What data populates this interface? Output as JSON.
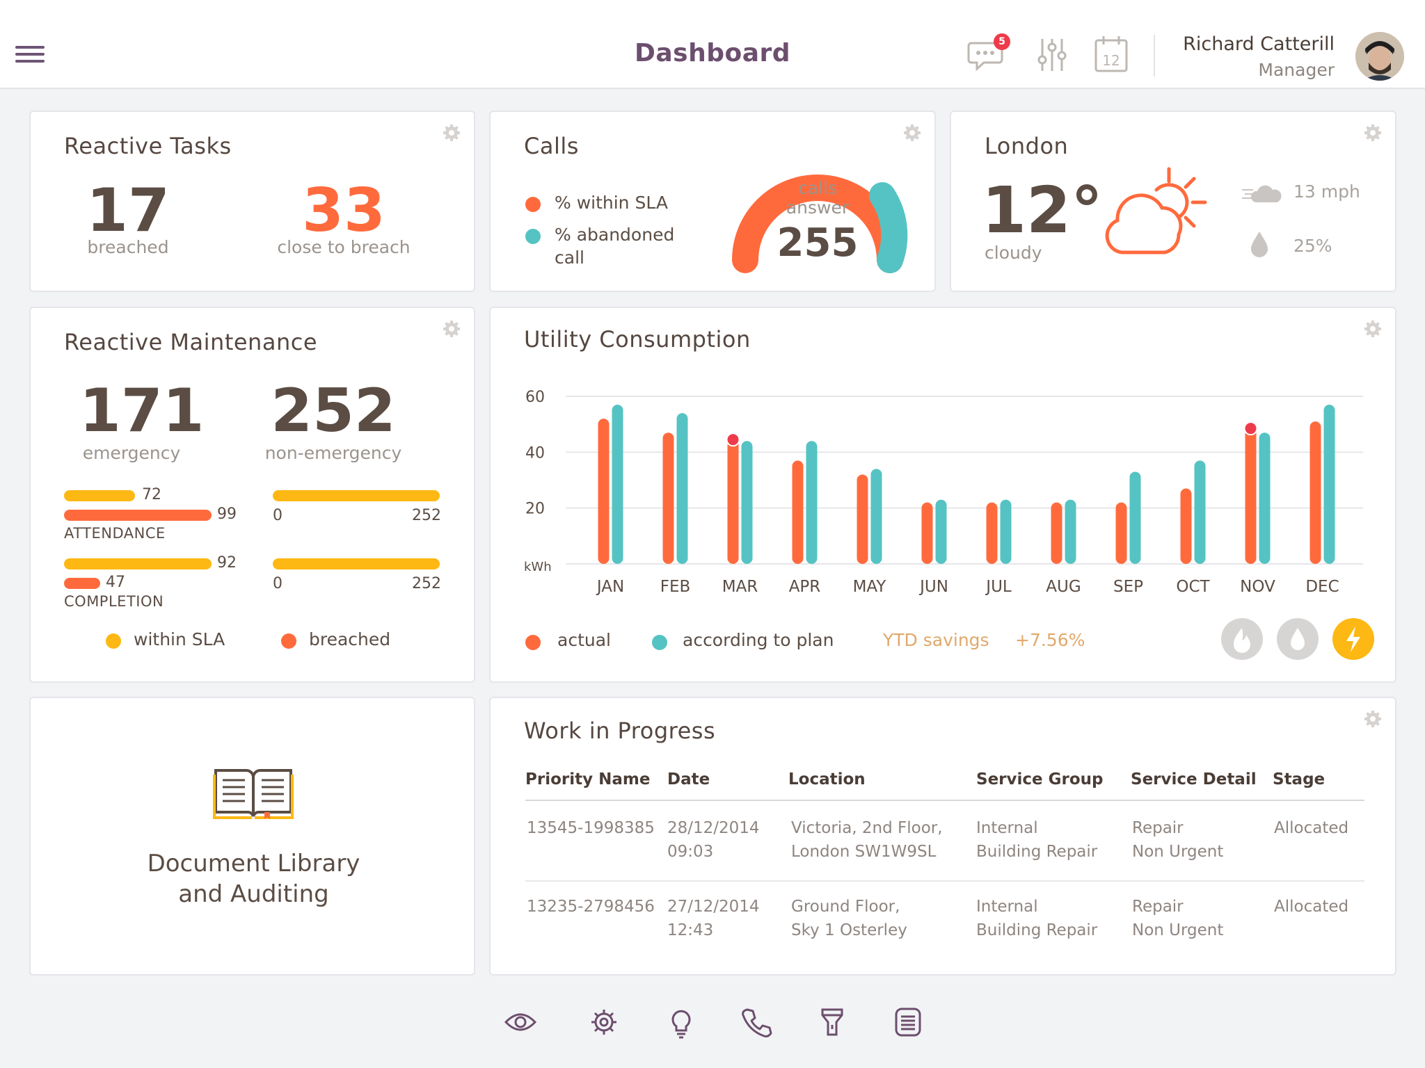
{
  "header": {
    "title": "Dashboard",
    "messages_badge": "5",
    "calendar_day": "12",
    "user_name": "Richard Catterill",
    "user_role": "Manager"
  },
  "reactive_tasks": {
    "title": "Reactive Tasks",
    "breached_value": "17",
    "breached_label": "breached",
    "close_value": "33",
    "close_label": "close to breach"
  },
  "calls": {
    "title": "Calls",
    "legend_sla": "% within SLA",
    "legend_abandoned_1": "% abandoned",
    "legend_abandoned_2": "call",
    "gauge_label_1": "calls",
    "gauge_label_2": "answer",
    "gauge_value": "255"
  },
  "weather": {
    "title": "London",
    "temperature": "12°",
    "condition": "cloudy",
    "wind": "13 mph",
    "humidity": "25%"
  },
  "maintenance": {
    "title": "Reactive Maintenance",
    "emergency_value": "171",
    "emergency_label": "emergency",
    "non_emergency_value": "252",
    "non_emergency_label": "non-emergency",
    "attendance": {
      "label": "ATTENDANCE",
      "within_sla": "72",
      "breached": "99",
      "ne_min": "0",
      "ne_max": "252"
    },
    "completion": {
      "label": "COMPLETION",
      "within_sla": "92",
      "breached": "47",
      "ne_min": "0",
      "ne_max": "252"
    },
    "legend_within": "within SLA",
    "legend_breached": "breached"
  },
  "utility": {
    "title": "Utility Consumption",
    "legend_actual": "actual",
    "legend_plan": "according to plan",
    "ytd_label": "YTD savings",
    "ytd_value": "+7.56%"
  },
  "chart_data": {
    "type": "bar",
    "title": "Utility Consumption",
    "ylabel": "kWh",
    "ylim": [
      0,
      60
    ],
    "yticks": [
      20,
      40,
      60
    ],
    "categories": [
      "JAN",
      "FEB",
      "MAR",
      "APR",
      "MAY",
      "JUN",
      "JUL",
      "AUG",
      "SEP",
      "OCT",
      "NOV",
      "DEC"
    ],
    "series": [
      {
        "name": "actual",
        "color": "#ff6a3d",
        "values": [
          52,
          47,
          45,
          37,
          32,
          22,
          22,
          22,
          22,
          27,
          49,
          51
        ]
      },
      {
        "name": "according to plan",
        "color": "#55c3c3",
        "values": [
          57,
          54,
          44,
          44,
          34,
          23,
          23,
          23,
          33,
          37,
          47,
          57
        ]
      }
    ],
    "highlighted": [
      "MAR",
      "NOV"
    ]
  },
  "library": {
    "title_1": "Document Library",
    "title_2": "and Auditing"
  },
  "wip": {
    "title": "Work in Progress",
    "columns": [
      "Priority Name",
      "Date",
      "Location",
      "Service Group",
      "Service Detail",
      "Stage"
    ],
    "rows": [
      {
        "priority": "13545-1998385",
        "date_1": "28/12/2014",
        "date_2": "09:03",
        "loc_1": "Victoria, 2nd Floor,",
        "loc_2": "London SW1W9SL",
        "group_1": "Internal",
        "group_2": "Building Repair",
        "detail_1": "Repair",
        "detail_2": "Non Urgent",
        "stage": "Allocated"
      },
      {
        "priority": "13235-2798456",
        "date_1": "27/12/2014",
        "date_2": "12:43",
        "loc_1": "Ground Floor,",
        "loc_2": "Sky 1 Osterley",
        "group_1": "Internal",
        "group_2": "Building Repair",
        "detail_1": "Repair",
        "detail_2": "Non Urgent",
        "stage": "Allocated"
      }
    ]
  },
  "colors": {
    "orange": "#ff6a3d",
    "teal": "#55c3c3",
    "yellow": "#fdb813",
    "purple": "#6c4e6e"
  }
}
